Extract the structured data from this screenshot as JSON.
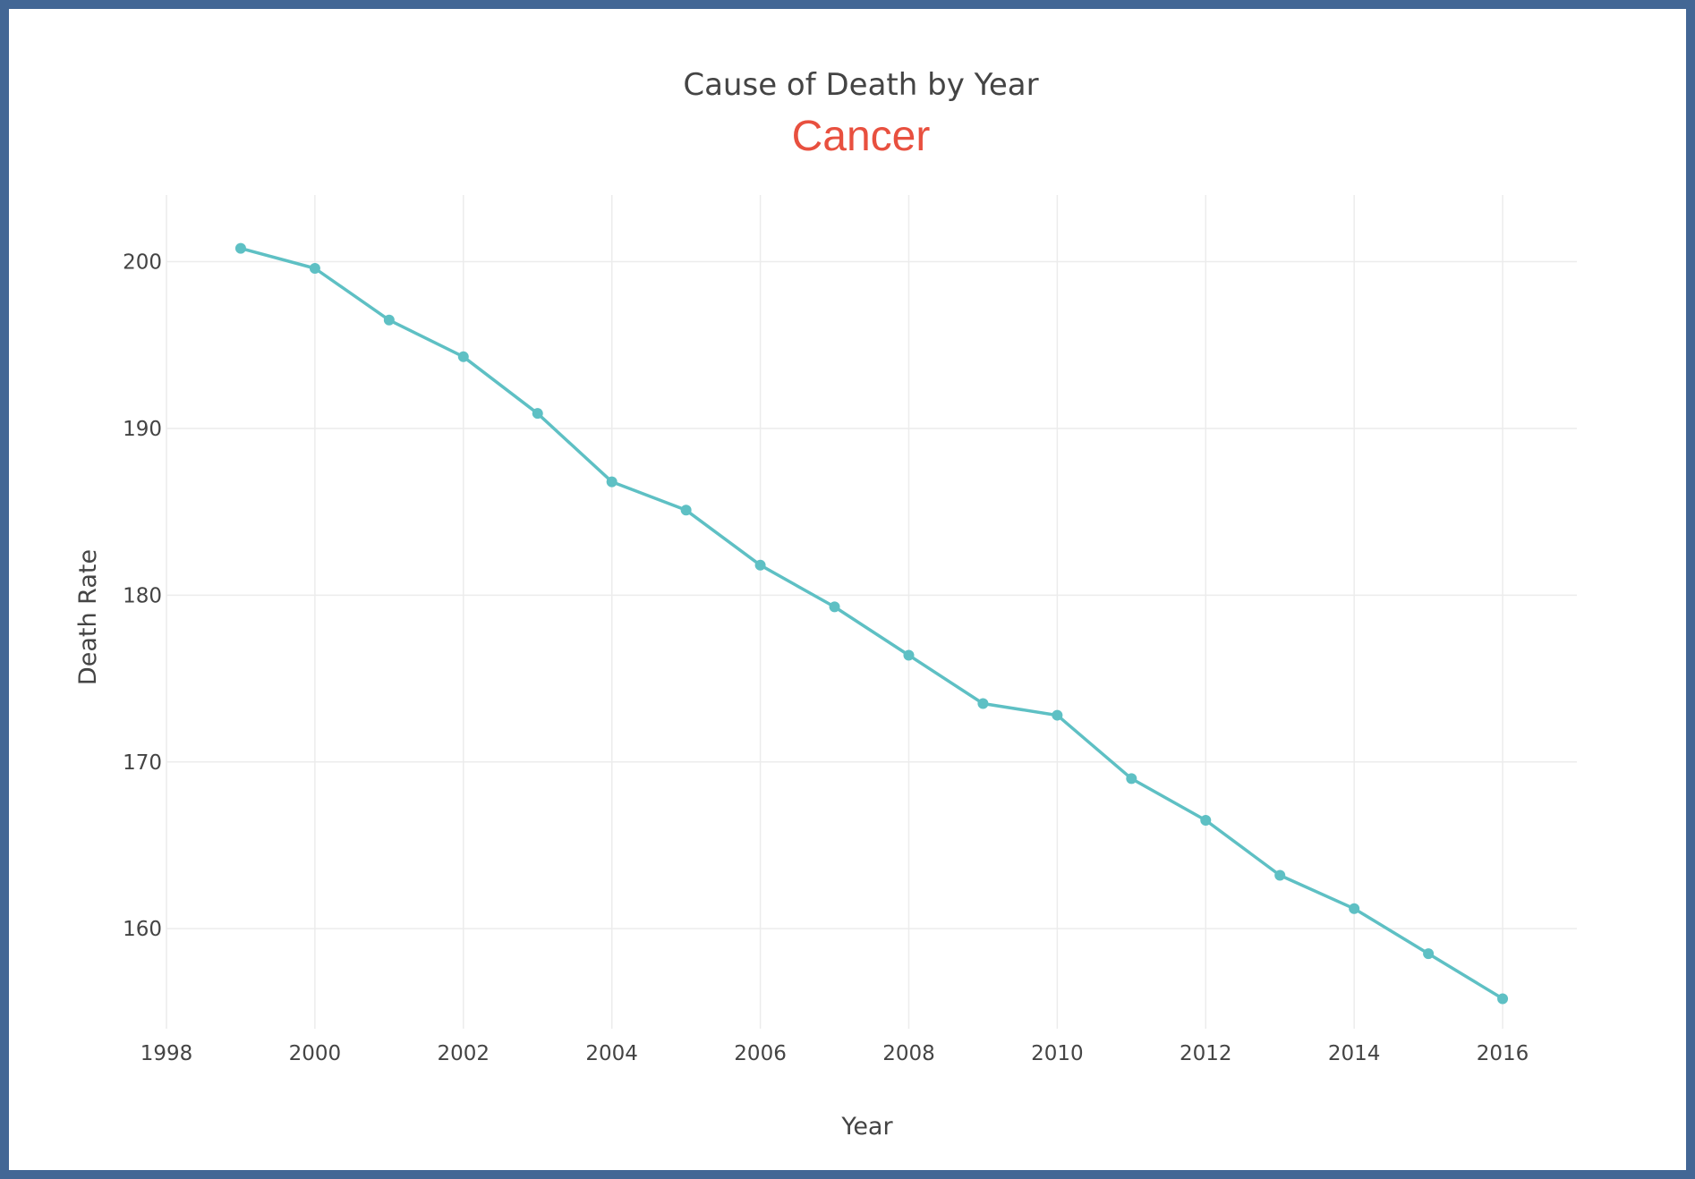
{
  "chart_data": {
    "type": "line",
    "title": "Cause of Death by Year",
    "subtitle": "Cancer",
    "xlabel": "Year",
    "ylabel": "Death Rate",
    "xlim": [
      1998,
      2017
    ],
    "ylim": [
      154,
      204
    ],
    "xticks": [
      1998,
      2000,
      2002,
      2004,
      2006,
      2008,
      2010,
      2012,
      2014,
      2016
    ],
    "yticks": [
      160,
      170,
      180,
      190,
      200
    ],
    "grid": true,
    "colors": {
      "line": "#5ec0c4",
      "subtitle": "#e8503f"
    },
    "series": [
      {
        "x": [
          1999,
          2000,
          2001,
          2002,
          2003,
          2004,
          2005,
          2006,
          2007,
          2008,
          2009,
          2010,
          2011,
          2012,
          2013,
          2014,
          2015,
          2016
        ],
        "y": [
          200.8,
          199.6,
          196.5,
          194.3,
          190.9,
          186.8,
          185.1,
          181.8,
          179.3,
          176.4,
          173.5,
          172.8,
          169.0,
          166.5,
          163.2,
          161.2,
          158.5,
          155.8
        ]
      }
    ]
  }
}
